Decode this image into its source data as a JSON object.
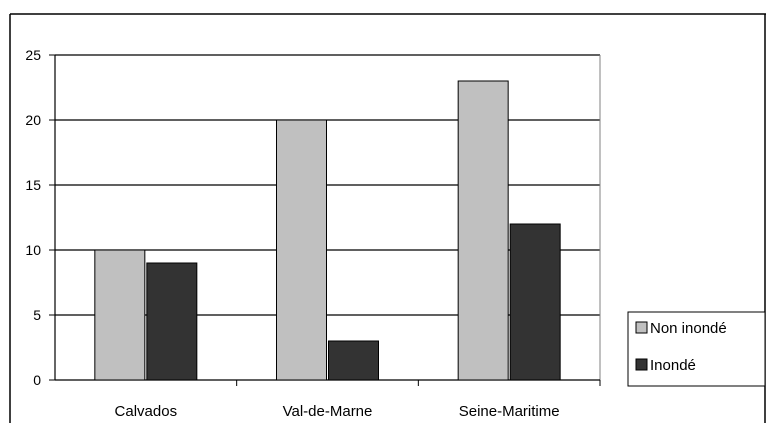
{
  "chart_data": {
    "type": "bar",
    "title": "",
    "xlabel": "",
    "ylabel": "",
    "categories": [
      "Calvados",
      "Val-de-Marne",
      "Seine-Maritime"
    ],
    "series": [
      {
        "name": "Non inondé",
        "values": [
          10,
          20,
          23
        ],
        "color": "#c0c0c0"
      },
      {
        "name": "Inondé",
        "values": [
          9,
          3,
          12
        ],
        "color": "#333333"
      }
    ],
    "ylim": [
      0,
      25
    ],
    "yticks": [
      "0",
      "5",
      "10",
      "15",
      "20",
      "25"
    ],
    "grid": true,
    "legend_position": "right"
  }
}
